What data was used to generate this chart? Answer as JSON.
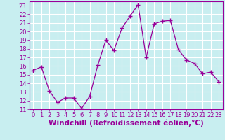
{
  "x": [
    0,
    1,
    2,
    3,
    4,
    5,
    6,
    7,
    8,
    9,
    10,
    11,
    12,
    13,
    14,
    15,
    16,
    17,
    18,
    19,
    20,
    21,
    22,
    23
  ],
  "y": [
    15.5,
    15.9,
    13.1,
    11.8,
    12.3,
    12.3,
    11.1,
    12.5,
    16.1,
    19.0,
    17.8,
    20.4,
    21.8,
    23.1,
    17.0,
    20.9,
    21.2,
    21.3,
    17.9,
    16.7,
    16.3,
    15.1,
    15.3,
    14.2
  ],
  "line_color": "#990099",
  "marker": "+",
  "marker_size": 4,
  "bg_color": "#c8eef0",
  "grid_color": "#ffffff",
  "xlabel": "Windchill (Refroidissement éolien,°C)",
  "xlim": [
    -0.5,
    23.5
  ],
  "ylim": [
    11,
    23.5
  ],
  "yticks": [
    11,
    12,
    13,
    14,
    15,
    16,
    17,
    18,
    19,
    20,
    21,
    22,
    23
  ],
  "xticks": [
    0,
    1,
    2,
    3,
    4,
    5,
    6,
    7,
    8,
    9,
    10,
    11,
    12,
    13,
    14,
    15,
    16,
    17,
    18,
    19,
    20,
    21,
    22,
    23
  ],
  "xlabel_color": "#990099",
  "tick_color": "#990099",
  "axis_label_fontsize": 7.5,
  "tick_fontsize": 6.0
}
